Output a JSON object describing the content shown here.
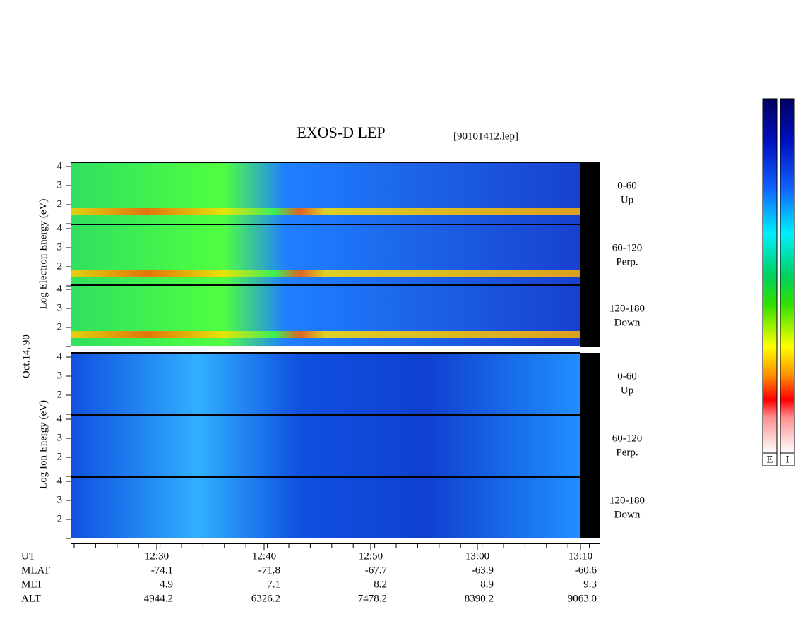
{
  "header": {
    "title": "EXOS-D LEP",
    "file": "[90101412.lep]"
  },
  "date": "Oct.14,'90",
  "axis_titles": {
    "electron": "Log  Electron  Energy  (eV)",
    "ion": "Log  Ion  Energy  (eV)"
  },
  "panels": [
    {
      "species": "electron",
      "label": [
        "0-60",
        "Up"
      ],
      "ticks": [
        "4",
        "3",
        "2"
      ]
    },
    {
      "species": "electron",
      "label": [
        "60-120",
        "Perp."
      ],
      "ticks": [
        "4",
        "3",
        "2"
      ]
    },
    {
      "species": "electron",
      "label": [
        "120-180",
        "Down"
      ],
      "ticks": [
        "4",
        "3",
        "2"
      ]
    },
    {
      "species": "ion",
      "label": [
        "0-60",
        "Up"
      ],
      "ticks": [
        "4",
        "3",
        "2"
      ]
    },
    {
      "species": "ion",
      "label": [
        "60-120",
        "Perp."
      ],
      "ticks": [
        "4",
        "3",
        "2"
      ]
    },
    {
      "species": "ion",
      "label": [
        "120-180",
        "Down"
      ],
      "ticks": [
        "4",
        "3",
        "2"
      ]
    }
  ],
  "ephemeris": [
    {
      "label": "UT",
      "values": [
        "12:30",
        "12:40",
        "12:50",
        "13:00",
        "13:10"
      ]
    },
    {
      "label": "MLAT",
      "values": [
        "-74.1",
        "-71.8",
        "-67.7",
        "-63.9",
        "-60.6"
      ]
    },
    {
      "label": "MLT",
      "values": [
        "4.9",
        "7.1",
        "8.2",
        "8.9",
        "9.3"
      ]
    },
    {
      "label": "ALT",
      "values": [
        "4944.2",
        "6326.2",
        "7478.2",
        "8390.2",
        "9063.0"
      ]
    }
  ],
  "colorbars": [
    "E",
    "I"
  ]
}
